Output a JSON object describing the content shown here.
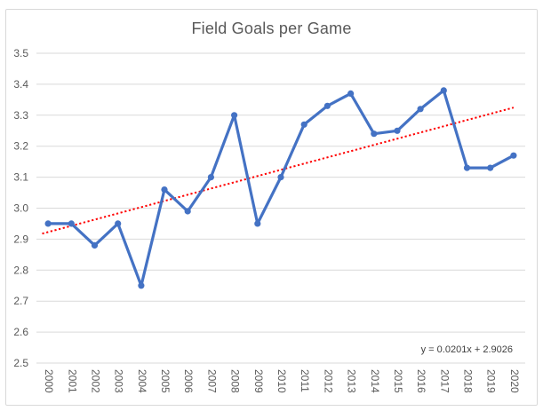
{
  "chart_data": {
    "type": "line",
    "title": "Field Goals per Game",
    "categories": [
      "2000",
      "2001",
      "2002",
      "2003",
      "2004",
      "2005",
      "2006",
      "2007",
      "2008",
      "2009",
      "2010",
      "2011",
      "2012",
      "2013",
      "2014",
      "2015",
      "2016",
      "2017",
      "2018",
      "2019",
      "2020"
    ],
    "series": [
      {
        "name": "Field Goals per Game",
        "values": [
          2.95,
          2.95,
          2.88,
          2.95,
          2.75,
          3.06,
          2.99,
          3.1,
          3.3,
          2.95,
          3.1,
          3.27,
          3.33,
          3.37,
          3.24,
          3.25,
          3.32,
          3.38,
          3.13,
          3.13,
          3.17
        ],
        "color": "#4472C4",
        "marker": "circle"
      }
    ],
    "trendline": {
      "label": "y = 0.0201x + 2.9026",
      "slope": 0.0201,
      "intercept": 2.9026,
      "color": "#FF0000",
      "style": "dotted"
    },
    "xlabel": "",
    "ylabel": "",
    "ylim": [
      2.5,
      3.5
    ],
    "yticks": [
      "3.5",
      "3.4",
      "3.3",
      "3.2",
      "3.1",
      "3.0",
      "2.9",
      "2.8",
      "2.7",
      "2.6",
      "2.5"
    ],
    "x_tick_rotation": 90,
    "grid": true,
    "legend_position": "none",
    "axis_label_color": "#595959",
    "gridline_color": "#D9D9D9",
    "frame_border_color": "#D9D9D9",
    "title_color": "#595959"
  }
}
